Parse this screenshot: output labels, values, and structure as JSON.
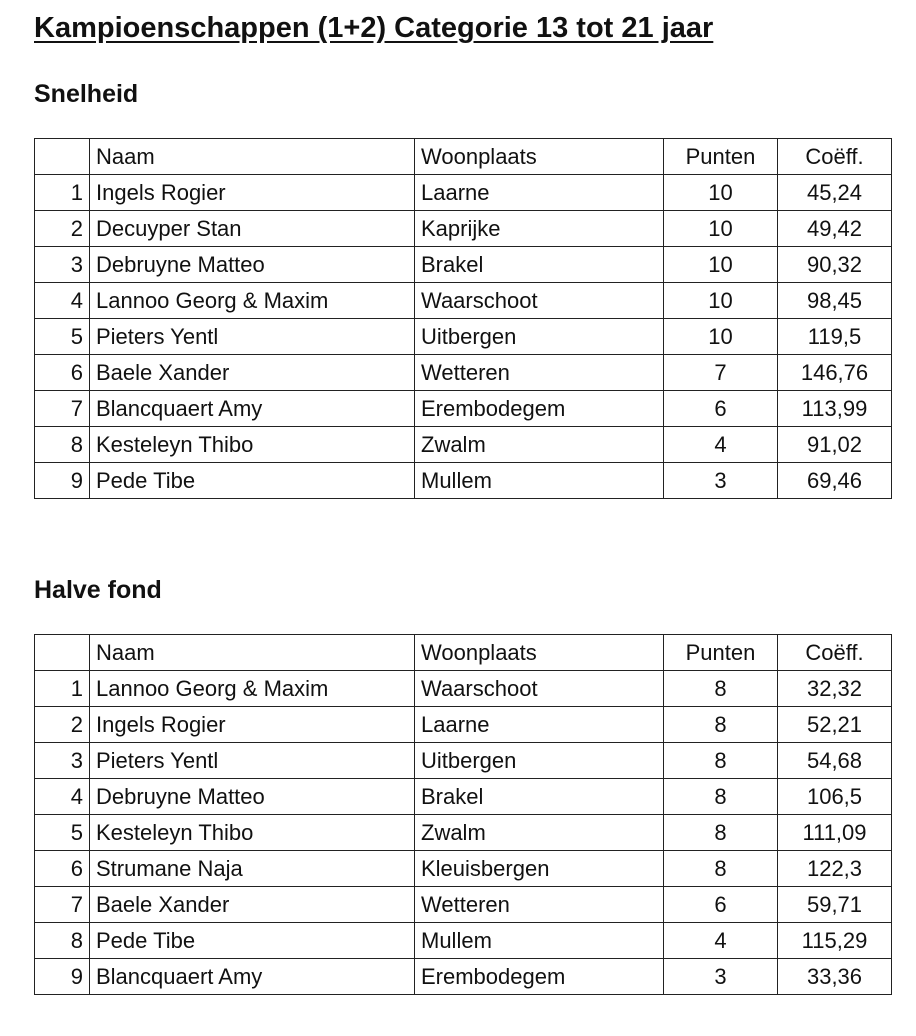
{
  "title": "Kampioenschappen (1+2) Categorie 13 tot 21 jaar",
  "headers": {
    "rank": "",
    "name": "Naam",
    "place": "Woonplaats",
    "points": "Punten",
    "coef": "Coëff."
  },
  "sections": [
    {
      "heading": "Snelheid",
      "rows": [
        [
          "1",
          "Ingels Rogier",
          "Laarne",
          "10",
          "45,24"
        ],
        [
          "2",
          "Decuyper Stan",
          "Kaprijke",
          "10",
          "49,42"
        ],
        [
          "3",
          "Debruyne Matteo",
          "Brakel",
          "10",
          "90,32"
        ],
        [
          "4",
          "Lannoo Georg & Maxim",
          "Waarschoot",
          "10",
          "98,45"
        ],
        [
          "5",
          "Pieters Yentl",
          "Uitbergen",
          "10",
          "119,5"
        ],
        [
          "6",
          "Baele Xander",
          "Wetteren",
          "7",
          "146,76"
        ],
        [
          "7",
          "Blancquaert Amy",
          "Erembodegem",
          "6",
          "113,99"
        ],
        [
          "8",
          "Kesteleyn Thibo",
          "Zwalm",
          "4",
          "91,02"
        ],
        [
          "9",
          "Pede Tibe",
          "Mullem",
          "3",
          "69,46"
        ]
      ]
    },
    {
      "heading": "Halve fond",
      "rows": [
        [
          "1",
          "Lannoo Georg & Maxim",
          "Waarschoot",
          "8",
          "32,32"
        ],
        [
          "2",
          "Ingels Rogier",
          "Laarne",
          "8",
          "52,21"
        ],
        [
          "3",
          "Pieters Yentl",
          "Uitbergen",
          "8",
          "54,68"
        ],
        [
          "4",
          "Debruyne Matteo",
          "Brakel",
          "8",
          "106,5"
        ],
        [
          "5",
          "Kesteleyn Thibo",
          "Zwalm",
          "8",
          "111,09"
        ],
        [
          "6",
          "Strumane Naja",
          "Kleuisbergen",
          "8",
          "122,3"
        ],
        [
          "7",
          "Baele Xander",
          "Wetteren",
          "6",
          "59,71"
        ],
        [
          "8",
          "Pede Tibe",
          "Mullem",
          "4",
          "115,29"
        ],
        [
          "9",
          "Blancquaert Amy",
          "Erembodegem",
          "3",
          "33,36"
        ]
      ]
    }
  ]
}
